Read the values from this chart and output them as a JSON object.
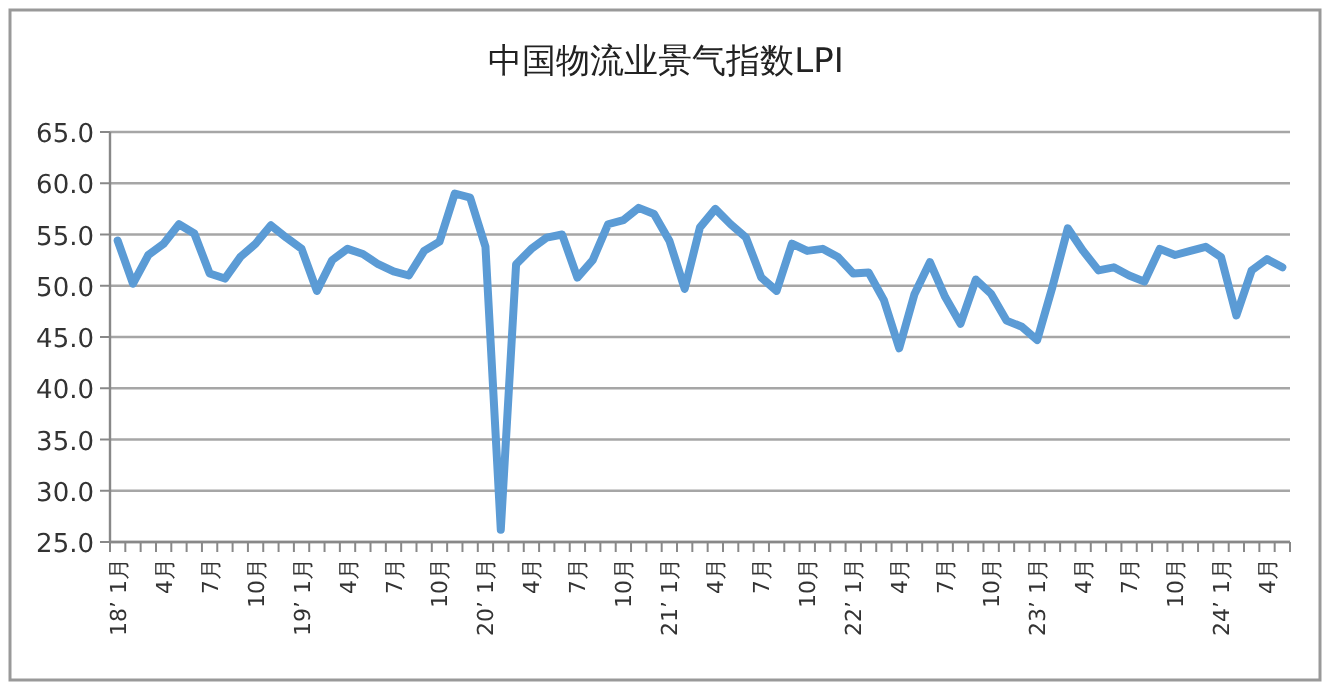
{
  "chart_data": {
    "type": "line",
    "title": "中国物流业景气指数LPI",
    "categories": [
      "18’ 1月",
      null,
      null,
      "4月",
      null,
      null,
      "7月",
      null,
      null,
      "10月",
      null,
      null,
      "19’ 1月",
      null,
      null,
      "4月",
      null,
      null,
      "7月",
      null,
      null,
      "10月",
      null,
      null,
      "20’ 1月",
      null,
      null,
      "4月",
      null,
      null,
      "7月",
      null,
      null,
      "10月",
      null,
      null,
      "21’ 1月",
      null,
      null,
      "4月",
      null,
      null,
      "7月",
      null,
      null,
      "10月",
      null,
      null,
      "22’ 1月",
      null,
      null,
      "4月",
      null,
      null,
      "7月",
      null,
      null,
      "10月",
      null,
      null,
      "23’ 1月",
      null,
      null,
      "4月",
      null,
      null,
      "7月",
      null,
      null,
      "10月",
      null,
      null,
      "24’ 1月",
      null,
      null,
      "4月",
      null
    ],
    "values": [
      54.4,
      50.2,
      53.0,
      54.1,
      56.0,
      55.1,
      51.2,
      50.7,
      52.8,
      54.1,
      55.9,
      54.7,
      53.6,
      49.5,
      52.5,
      53.6,
      53.1,
      52.1,
      51.4,
      51.0,
      53.4,
      54.3,
      59.0,
      58.6,
      53.8,
      26.2,
      52.1,
      53.6,
      54.7,
      55.0,
      50.8,
      52.5,
      56.0,
      56.4,
      57.6,
      57.0,
      54.4,
      49.7,
      55.7,
      57.5,
      56.0,
      54.7,
      50.8,
      49.5,
      54.1,
      53.4,
      53.6,
      52.8,
      51.2,
      51.3,
      48.6,
      43.9,
      49.2,
      52.3,
      48.9,
      46.3,
      50.6,
      49.2,
      46.6,
      46.0,
      44.7,
      49.9,
      55.6,
      53.4,
      51.5,
      51.8,
      51.0,
      50.4,
      53.6,
      53.0,
      53.4,
      53.8,
      52.8,
      47.1,
      51.5,
      52.6,
      51.8
    ],
    "color": "#5b9bd5",
    "ylim": [
      25,
      65
    ],
    "yticks": [
      {
        "value": 25,
        "label": "25.0"
      },
      {
        "value": 30,
        "label": "30.0"
      },
      {
        "value": 35,
        "label": "35.0"
      },
      {
        "value": 40,
        "label": "40.0"
      },
      {
        "value": 45,
        "label": "45.0"
      },
      {
        "value": 50,
        "label": "50.0"
      },
      {
        "value": 55,
        "label": "55.0"
      },
      {
        "value": 60,
        "label": "60.0"
      },
      {
        "value": 65,
        "label": "65.0"
      }
    ],
    "grid": "y"
  }
}
